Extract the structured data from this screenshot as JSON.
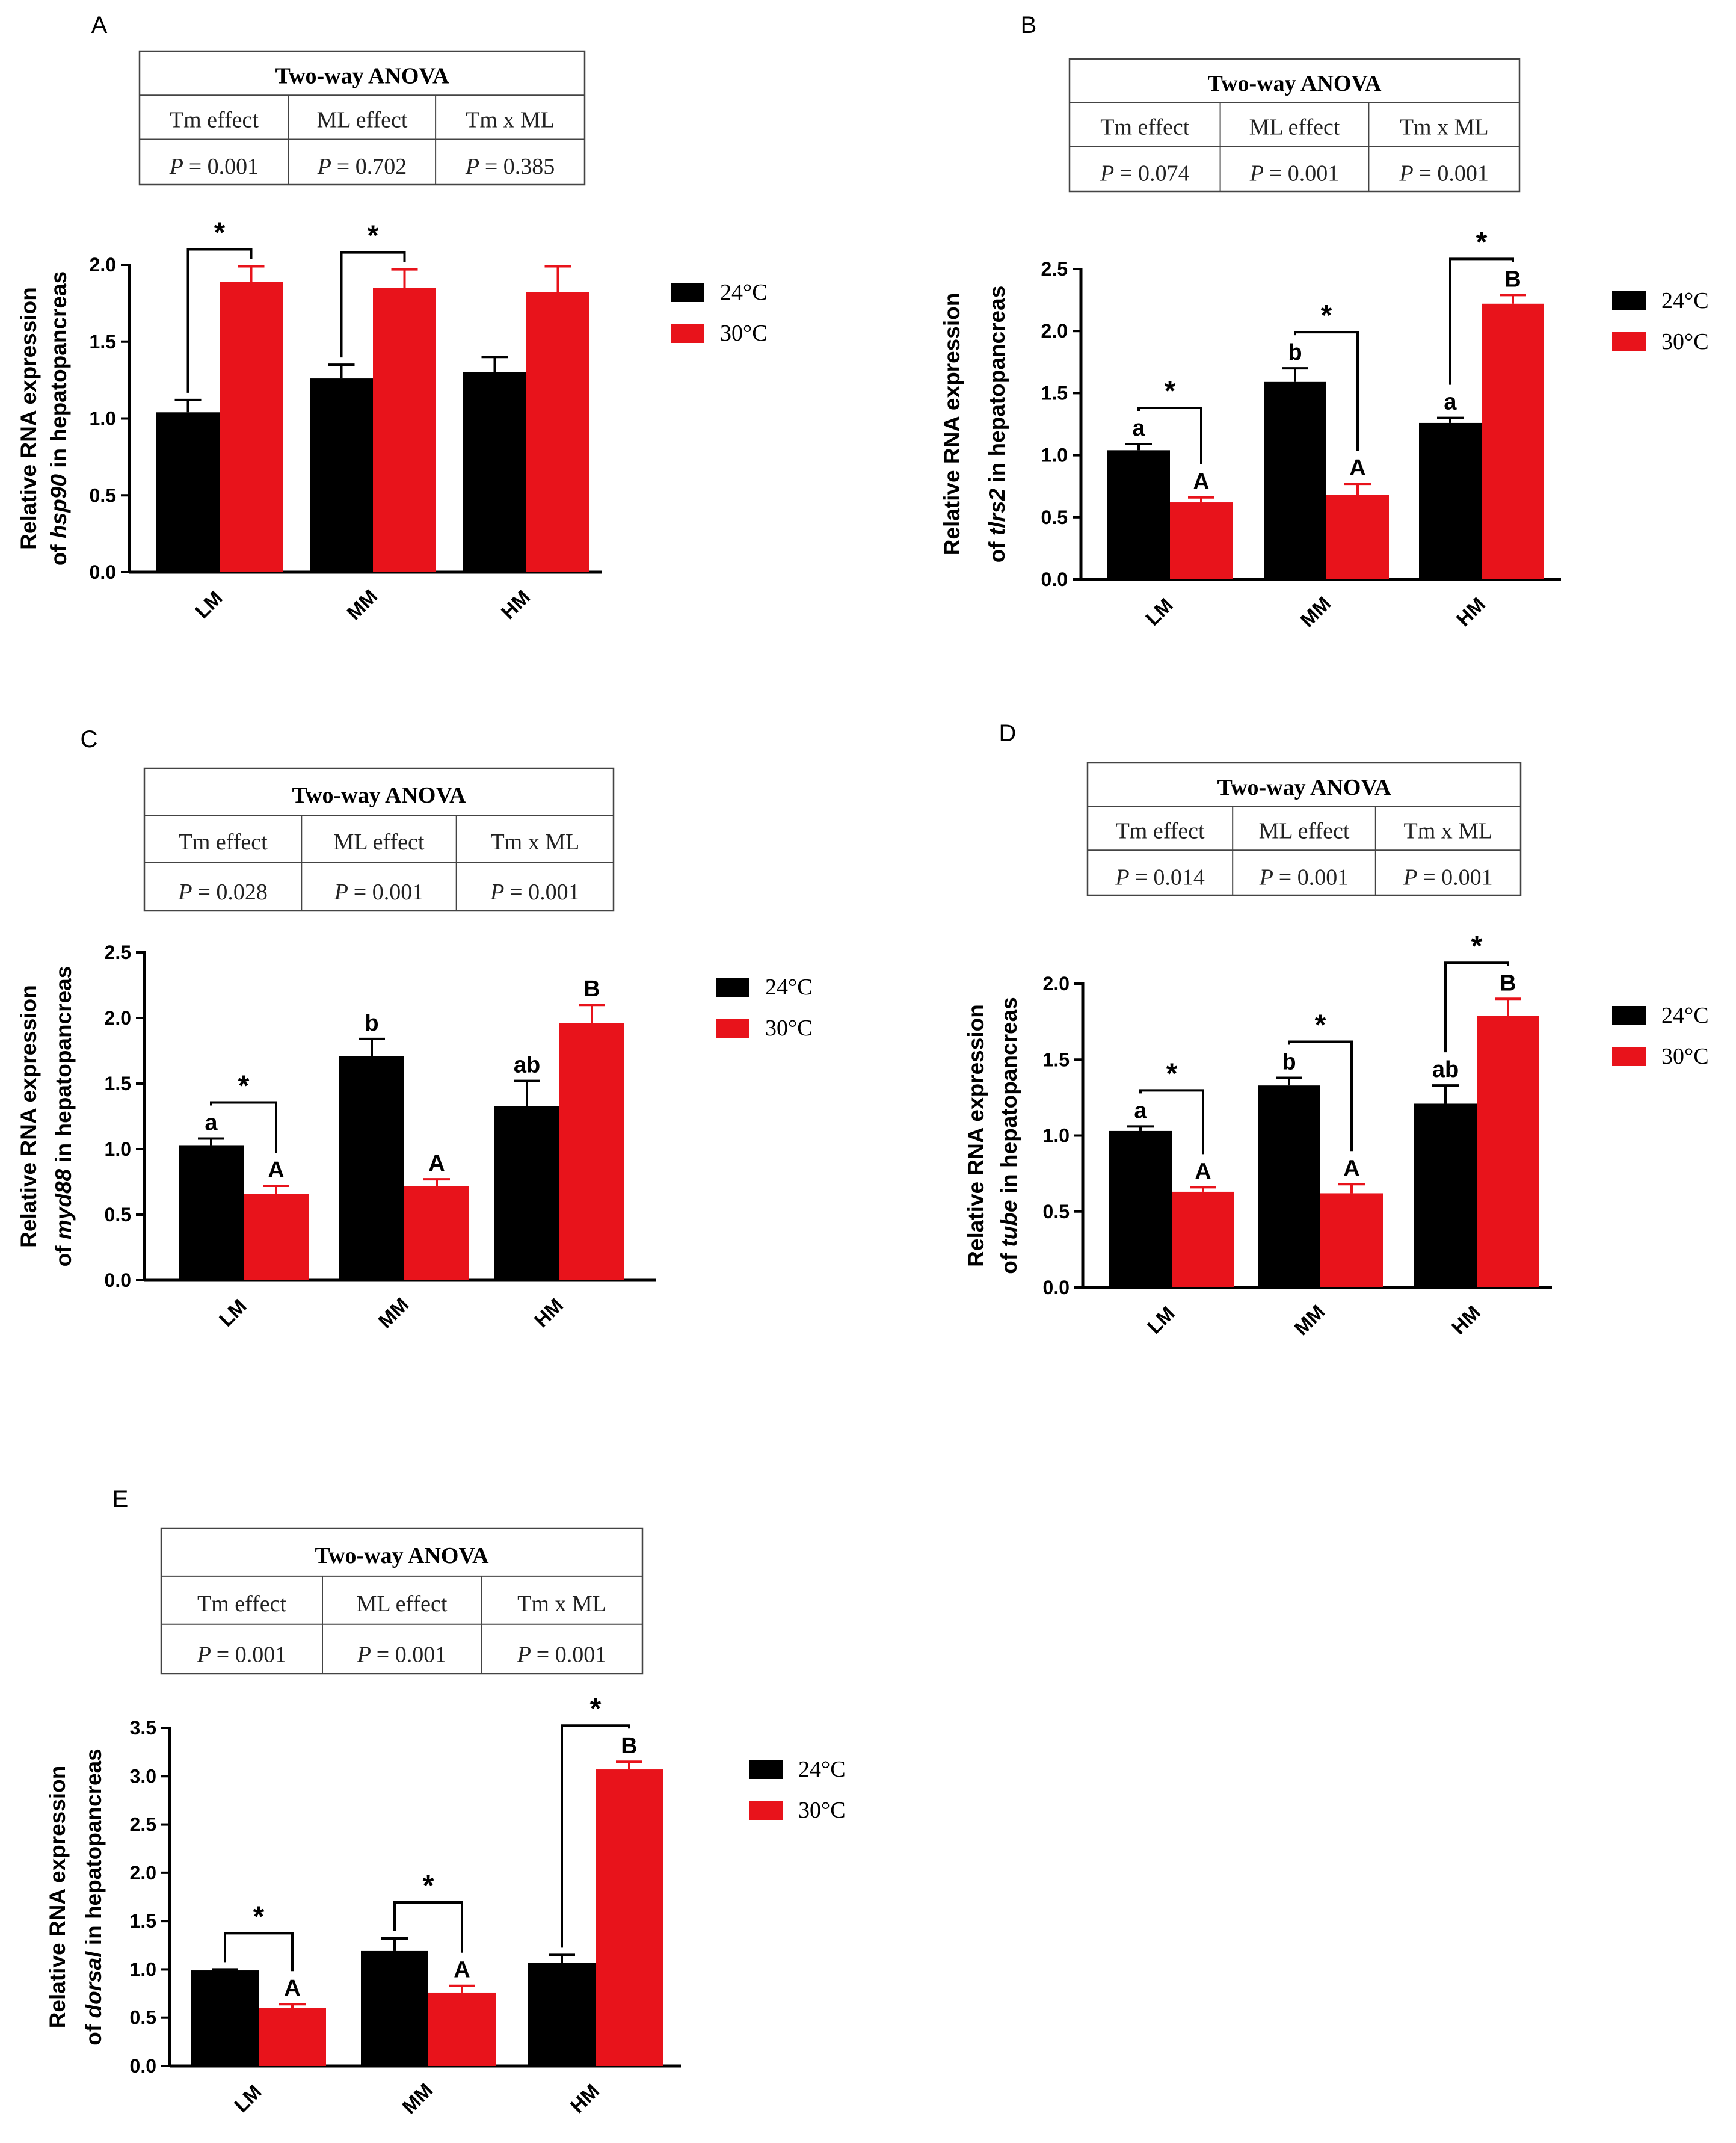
{
  "colors": {
    "c24": "#000000",
    "c30": "#e8131b",
    "axis": "#000000"
  },
  "chart_data": [
    {
      "panel": "A",
      "type": "bar",
      "anova": {
        "title": "Two-way ANOVA",
        "headers": [
          "Tm effect",
          "ML effect",
          "Tm x ML"
        ],
        "p_prefix": "P",
        "p_values": [
          "= 0.001",
          "= 0.702",
          "= 0.385"
        ]
      },
      "ylabel_line1": "Relative RNA expression",
      "ylabel_line2": {
        "pre": "of ",
        "gene": "hsp90",
        "post": " in hepatopancreas"
      },
      "ylim": [
        0,
        2.0
      ],
      "yticks": [
        "0.0",
        "0.5",
        "1.0",
        "1.5",
        "2.0"
      ],
      "categories": [
        "LM",
        "MM",
        "HM"
      ],
      "series": [
        {
          "name": "24°C",
          "values": [
            1.04,
            1.26,
            1.3
          ],
          "errors": [
            0.08,
            0.09,
            0.1
          ],
          "letters": [
            "",
            "",
            ""
          ]
        },
        {
          "name": "30°C",
          "values": [
            1.89,
            1.85,
            1.82
          ],
          "errors": [
            0.1,
            0.12,
            0.17
          ],
          "letters": [
            "",
            "",
            ""
          ]
        }
      ],
      "significance": [
        "*",
        "*",
        ""
      ]
    },
    {
      "panel": "B",
      "type": "bar",
      "anova": {
        "title": "Two-way ANOVA",
        "headers": [
          "Tm effect",
          "ML effect",
          "Tm x ML"
        ],
        "p_prefix": "P",
        "p_values": [
          "= 0.074",
          "= 0.001",
          "= 0.001"
        ]
      },
      "ylabel_line1": "Relative RNA expression",
      "ylabel_line2": {
        "pre": "of ",
        "gene": "tlrs2",
        "post": " in hepatopancreas"
      },
      "ylim": [
        0,
        2.5
      ],
      "yticks": [
        "0.0",
        "0.5",
        "1.0",
        "1.5",
        "2.0",
        "2.5"
      ],
      "categories": [
        "LM",
        "MM",
        "HM"
      ],
      "series": [
        {
          "name": "24°C",
          "values": [
            1.04,
            1.59,
            1.26
          ],
          "errors": [
            0.05,
            0.11,
            0.04
          ],
          "letters": [
            "a",
            "b",
            "a"
          ]
        },
        {
          "name": "30°C",
          "values": [
            0.62,
            0.68,
            2.22
          ],
          "errors": [
            0.04,
            0.09,
            0.07
          ],
          "letters": [
            "A",
            "A",
            "B"
          ]
        }
      ],
      "significance": [
        "*",
        "*",
        "*"
      ]
    },
    {
      "panel": "C",
      "type": "bar",
      "anova": {
        "title": "Two-way ANOVA",
        "headers": [
          "Tm effect",
          "ML effect",
          "Tm x ML"
        ],
        "p_prefix": "P",
        "p_values": [
          "= 0.028",
          "= 0.001",
          "= 0.001"
        ]
      },
      "ylabel_line1": "Relative RNA expression",
      "ylabel_line2": {
        "pre": "of ",
        "gene": "myd88",
        "post": " in hepatopancreas"
      },
      "ylim": [
        0,
        2.5
      ],
      "yticks": [
        "0.0",
        "0.5",
        "1.0",
        "1.5",
        "2.0",
        "2.5"
      ],
      "categories": [
        "LM",
        "MM",
        "HM"
      ],
      "series": [
        {
          "name": "24°C",
          "values": [
            1.03,
            1.71,
            1.33
          ],
          "errors": [
            0.05,
            0.13,
            0.19
          ],
          "letters": [
            "a",
            "b",
            "ab"
          ]
        },
        {
          "name": "30°C",
          "values": [
            0.66,
            0.72,
            1.96
          ],
          "errors": [
            0.06,
            0.05,
            0.14
          ],
          "letters": [
            "A",
            "A",
            "B"
          ]
        }
      ],
      "significance": [
        "*",
        "",
        ""
      ]
    },
    {
      "panel": "D",
      "type": "bar",
      "anova": {
        "title": "Two-way ANOVA",
        "headers": [
          "Tm effect",
          "ML effect",
          "Tm x ML"
        ],
        "p_prefix": "P",
        "p_values": [
          "= 0.014",
          "= 0.001",
          "= 0.001"
        ]
      },
      "ylabel_line1": "Relative RNA expression",
      "ylabel_line2": {
        "pre": "of ",
        "gene": "tube",
        "post": " in hepatopancreas"
      },
      "ylim": [
        0,
        2.0
      ],
      "yticks": [
        "0.0",
        "0.5",
        "1.0",
        "1.5",
        "2.0"
      ],
      "categories": [
        "LM",
        "MM",
        "HM"
      ],
      "series": [
        {
          "name": "24°C",
          "values": [
            1.03,
            1.33,
            1.21
          ],
          "errors": [
            0.03,
            0.05,
            0.12
          ],
          "letters": [
            "a",
            "b",
            "ab"
          ]
        },
        {
          "name": "30°C",
          "values": [
            0.63,
            0.62,
            1.79
          ],
          "errors": [
            0.03,
            0.06,
            0.11
          ],
          "letters": [
            "A",
            "A",
            "B"
          ]
        }
      ],
      "significance": [
        "*",
        "*",
        "*"
      ]
    },
    {
      "panel": "E",
      "type": "bar",
      "anova": {
        "title": "Two-way ANOVA",
        "headers": [
          "Tm effect",
          "ML effect",
          "Tm x ML"
        ],
        "p_prefix": "P",
        "p_values": [
          "= 0.001",
          "= 0.001",
          "= 0.001"
        ]
      },
      "ylabel_line1": "Relative RNA expression",
      "ylabel_line2": {
        "pre": "of ",
        "gene": "dorsal",
        "post": " in hepatopancreas"
      },
      "ylim": [
        0,
        3.5
      ],
      "yticks": [
        "0.0",
        "0.5",
        "1.0",
        "1.5",
        "2.0",
        "2.5",
        "3.0",
        "3.5"
      ],
      "categories": [
        "LM",
        "MM",
        "HM"
      ],
      "series": [
        {
          "name": "24°C",
          "values": [
            0.99,
            1.19,
            1.07
          ],
          "errors": [
            0.01,
            0.13,
            0.08
          ],
          "letters": [
            "",
            "",
            ""
          ]
        },
        {
          "name": "30°C",
          "values": [
            0.6,
            0.76,
            3.07
          ],
          "errors": [
            0.04,
            0.07,
            0.08
          ],
          "letters": [
            "A",
            "A",
            "B"
          ]
        }
      ],
      "significance": [
        "*",
        "*",
        "*"
      ]
    }
  ]
}
